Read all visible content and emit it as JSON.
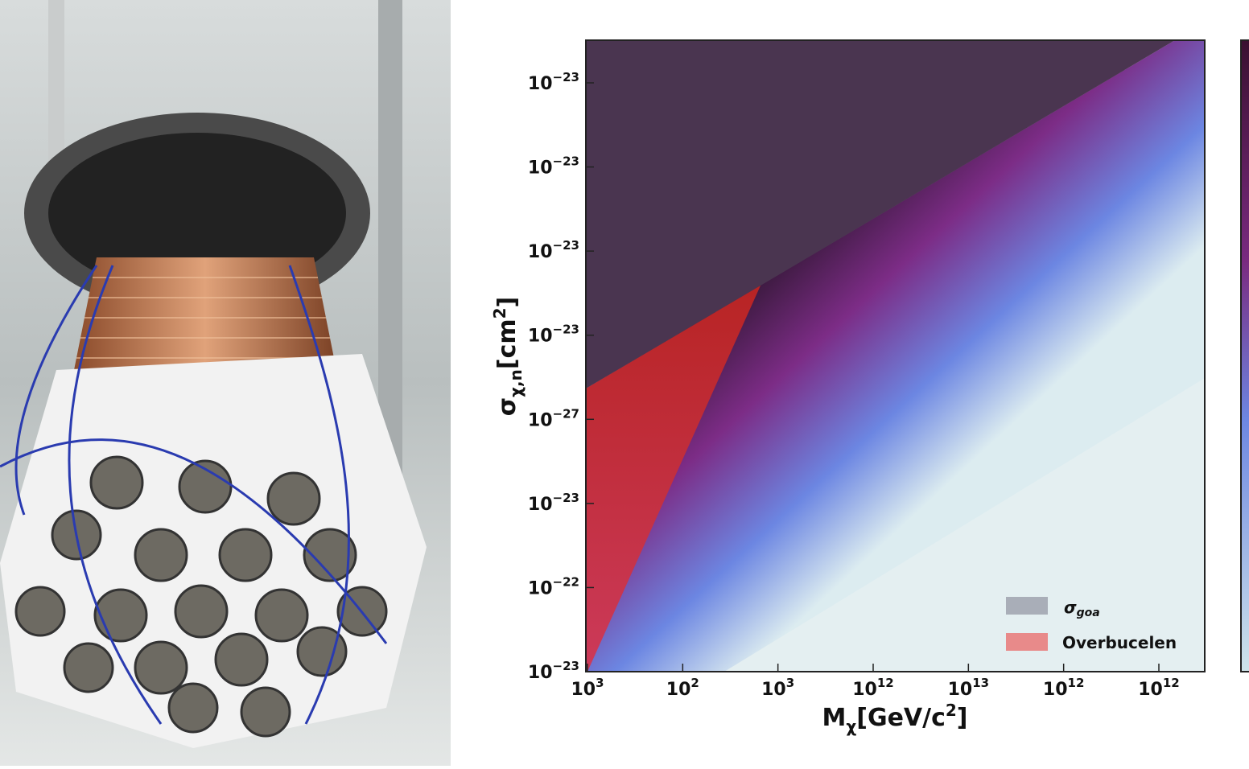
{
  "figure": {
    "y_axis_label": {
      "symbol": "σ",
      "subscript": "χ,n",
      "unit": "[cm",
      "superscript": "2",
      "end": "]"
    },
    "x_axis_label": {
      "symbol": "M",
      "subscript": "χ",
      "unit": "[GeV/c",
      "superscript": "2",
      "end": "]"
    },
    "y_tick_labels": [
      {
        "base": "10",
        "exp": "−23"
      },
      {
        "base": "10",
        "exp": "−23"
      },
      {
        "base": "10",
        "exp": "−23"
      },
      {
        "base": "10",
        "exp": "−23"
      },
      {
        "base": "10",
        "exp": "−27"
      },
      {
        "base": "10",
        "exp": "−23"
      },
      {
        "base": "10",
        "exp": "−22"
      },
      {
        "base": "10",
        "exp": "−23"
      }
    ],
    "x_tick_labels": [
      {
        "base": "10",
        "exp": "3"
      },
      {
        "base": "10",
        "exp": "2"
      },
      {
        "base": "10",
        "exp": "3"
      },
      {
        "base": "10",
        "exp": "12"
      },
      {
        "base": "10",
        "exp": "13"
      },
      {
        "base": "10",
        "exp": "12"
      },
      {
        "base": "10",
        "exp": "12"
      }
    ],
    "legend": [
      {
        "symbol": "σ",
        "subscript": "goa",
        "color": "#a9aeb8"
      },
      {
        "label": "Overbucelen",
        "color": "#e88a8a"
      }
    ]
  }
}
